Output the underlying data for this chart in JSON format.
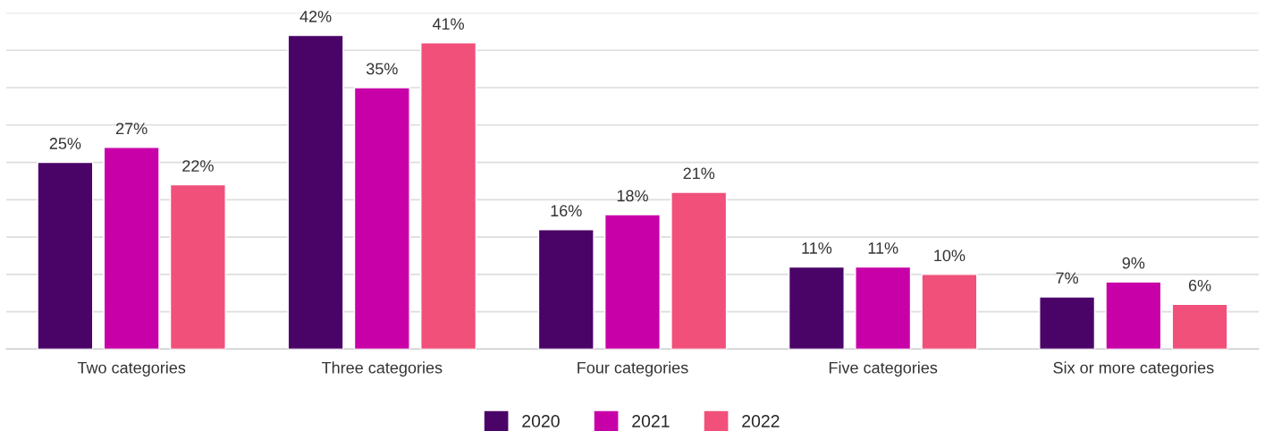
{
  "chart_data": {
    "type": "bar",
    "categories": [
      "Two categories",
      "Three categories",
      "Four categories",
      "Five categories",
      "Six or more categories"
    ],
    "series": [
      {
        "name": "2020",
        "color": "#4a0468",
        "values": [
          25,
          42,
          16,
          11,
          7
        ],
        "value_labels": [
          "25%",
          "42%",
          "16%",
          "11%",
          "7%"
        ]
      },
      {
        "name": "2021",
        "color": "#c800a8",
        "values": [
          27,
          35,
          18,
          11,
          9
        ],
        "value_labels": [
          "27%",
          "35%",
          "18%",
          "11%",
          "9%"
        ]
      },
      {
        "name": "2022",
        "color": "#f0507a",
        "values": [
          22,
          41,
          21,
          10,
          6
        ],
        "value_labels": [
          "22%",
          "41%",
          "21%",
          "10%",
          "6%"
        ]
      }
    ],
    "ylim": [
      0,
      45
    ],
    "yticks": [
      {
        "value": 0,
        "label": null
      },
      {
        "value": 5,
        "label": null
      },
      {
        "value": 10,
        "label": null
      },
      {
        "value": 15,
        "label": null
      },
      {
        "value": 20,
        "label": null
      },
      {
        "value": 25,
        "label": null
      },
      {
        "value": 30,
        "label": null
      },
      {
        "value": 35,
        "label": null
      },
      {
        "value": 40,
        "label": null
      },
      {
        "value": 45,
        "label": null
      }
    ],
    "tick_labels": "x",
    "grid": "y",
    "legend": "bottom"
  }
}
